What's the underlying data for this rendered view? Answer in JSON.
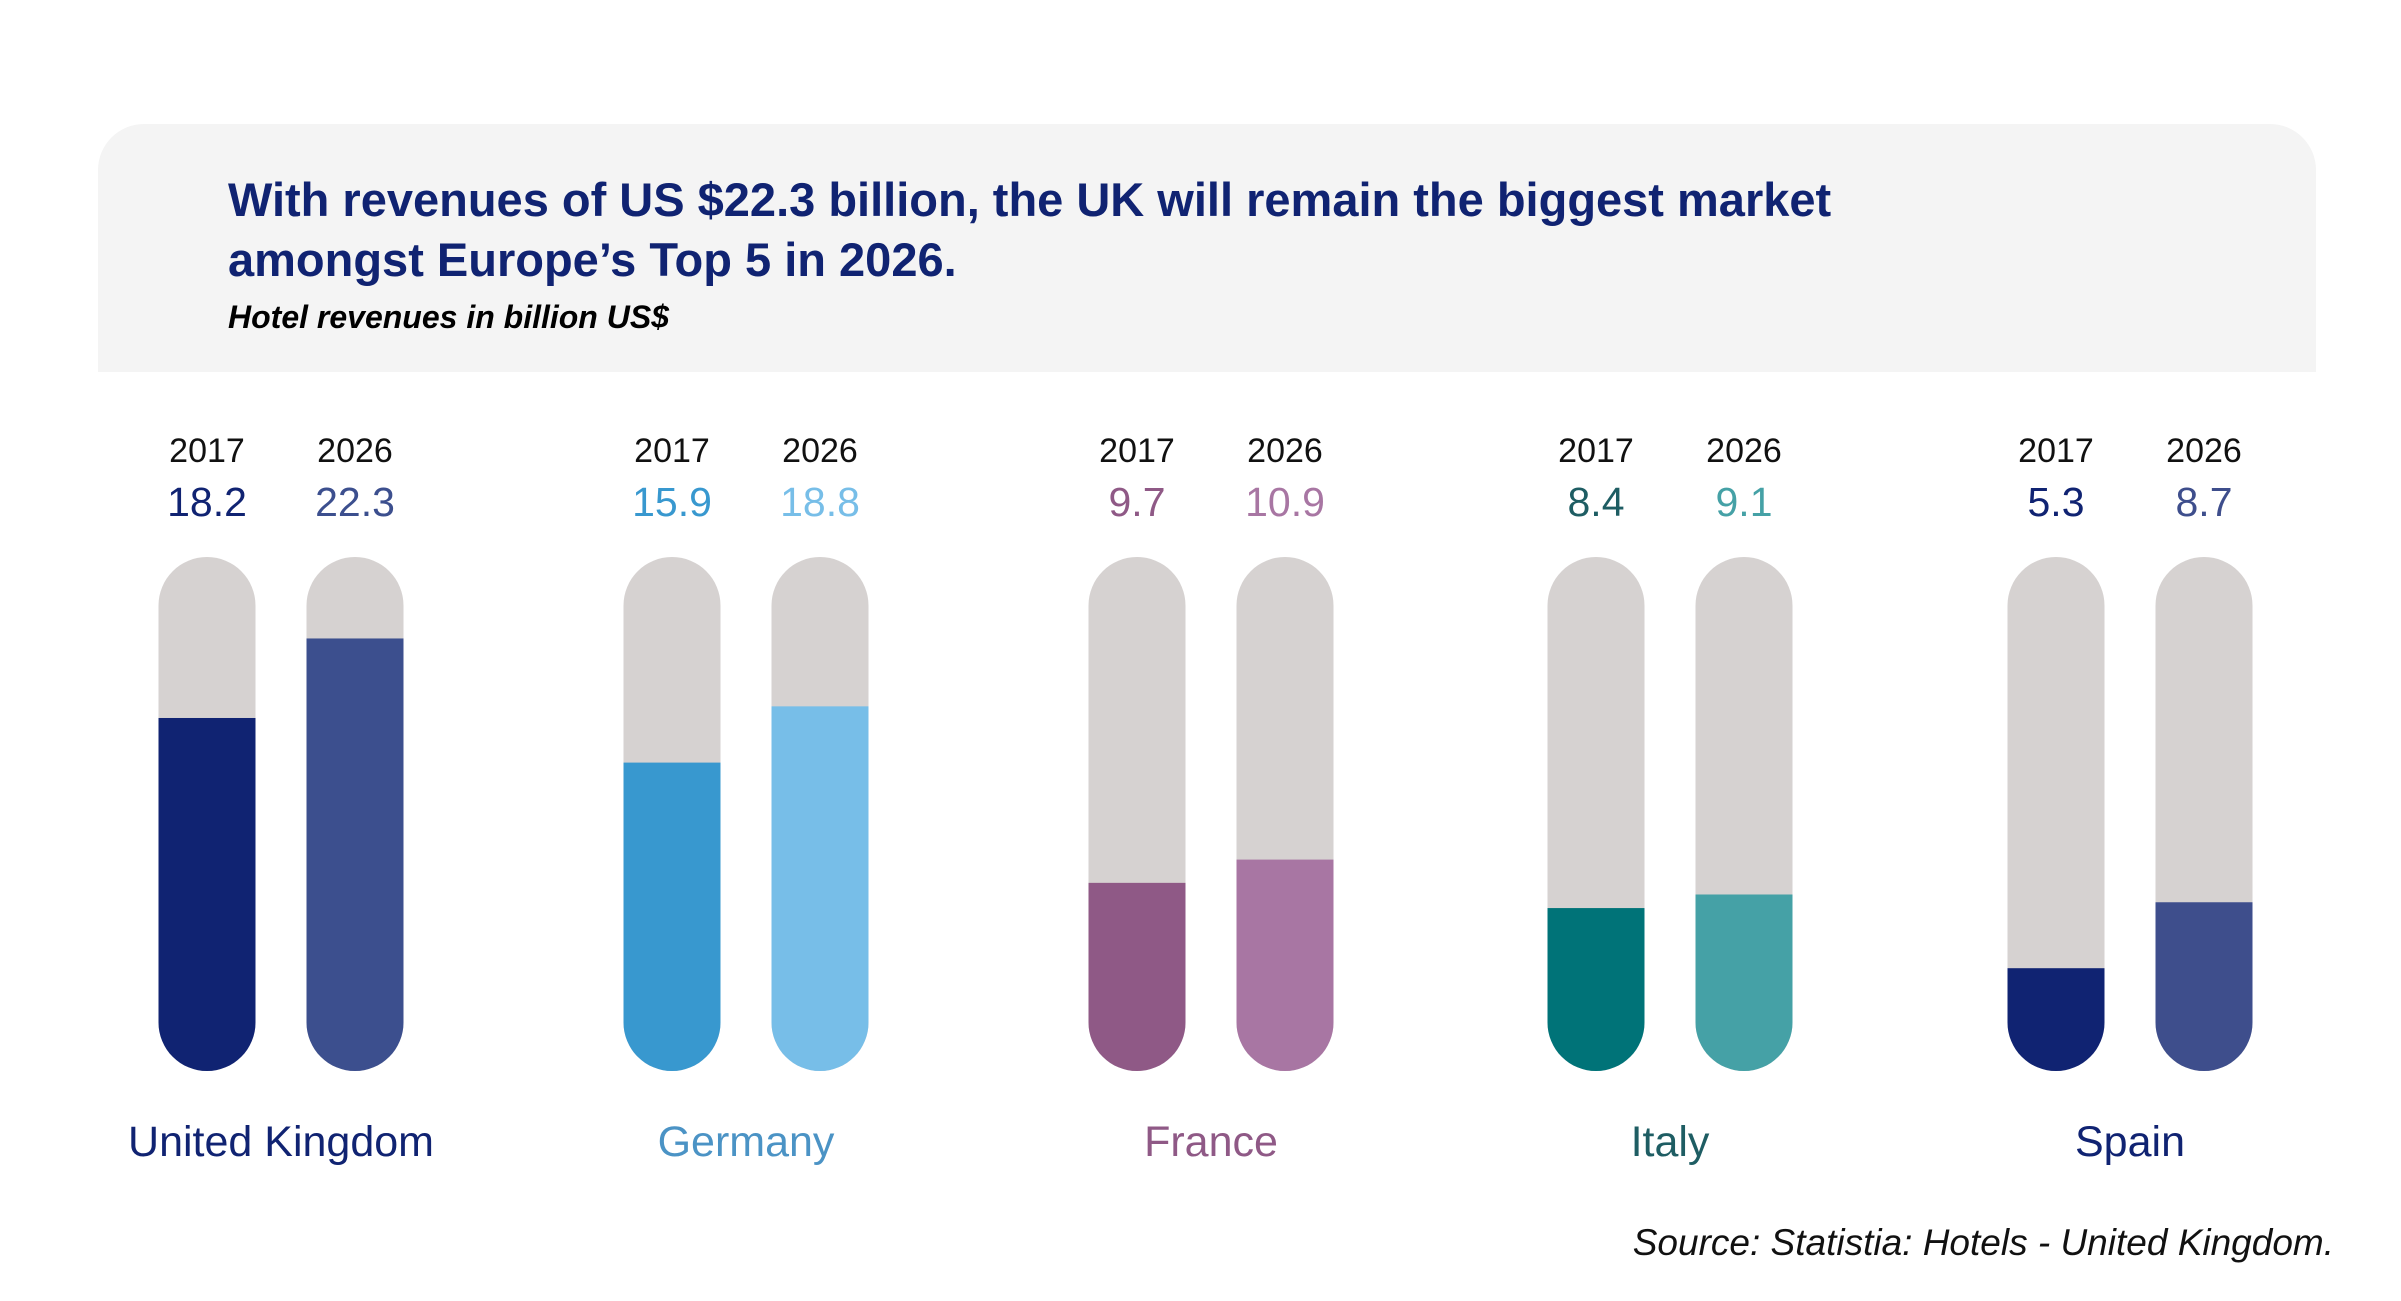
{
  "header": {
    "headline": "With revenues of US $22.3 billion, the UK will remain the biggest market amongst Europe’s Top 5 in 2026.",
    "subtitle": "Hotel revenues in billion US$"
  },
  "footer": {
    "source": "Source: Statistia: Hotels - United Kingdom."
  },
  "chart_data": {
    "type": "bar",
    "title": "With revenues of US $22.3 billion, the UK will remain the biggest market amongst Europe’s Top 5 in 2026.",
    "ylabel": "Hotel revenues in billion US$",
    "ylim": [
      0,
      26.5
    ],
    "series_names": [
      "2017",
      "2026"
    ],
    "track_color": "#d6d2d1",
    "groups": [
      {
        "name": "United Kingdom",
        "years": [
          "2017",
          "2026"
        ],
        "values": [
          18.2,
          22.3
        ],
        "value_labels": [
          "18.2",
          "22.3"
        ],
        "colors": [
          "#102372",
          "#3c4f8e"
        ],
        "label_colors": [
          "#102372",
          "#3c4f8e"
        ],
        "name_color": "#102372"
      },
      {
        "name": "Germany",
        "years": [
          "2017",
          "2026"
        ],
        "values": [
          15.9,
          18.8
        ],
        "value_labels": [
          "15.9",
          "18.8"
        ],
        "colors": [
          "#3898cf",
          "#77bee8"
        ],
        "label_colors": [
          "#3898cf",
          "#77bee8"
        ],
        "name_color": "#4b93c5"
      },
      {
        "name": "France",
        "years": [
          "2017",
          "2026"
        ],
        "values": [
          9.7,
          10.9
        ],
        "value_labels": [
          "9.7",
          "10.9"
        ],
        "colors": [
          "#8f5986",
          "#a876a3"
        ],
        "label_colors": [
          "#8f5986",
          "#a876a3"
        ],
        "name_color": "#8f5986"
      },
      {
        "name": "Italy",
        "years": [
          "2017",
          "2026"
        ],
        "values": [
          8.4,
          9.1
        ],
        "value_labels": [
          "8.4",
          "9.1"
        ],
        "colors": [
          "#007378",
          "#45a1a6"
        ],
        "label_colors": [
          "#1e5d63",
          "#45a1a6"
        ],
        "name_color": "#1e5d63"
      },
      {
        "name": "Spain",
        "years": [
          "2017",
          "2026"
        ],
        "values": [
          5.3,
          8.7
        ],
        "value_labels": [
          "5.3",
          "8.7"
        ],
        "colors": [
          "#102372",
          "#3e4e8c"
        ],
        "label_colors": [
          "#102372",
          "#3e4e8c"
        ],
        "name_color": "#102372"
      }
    ]
  }
}
